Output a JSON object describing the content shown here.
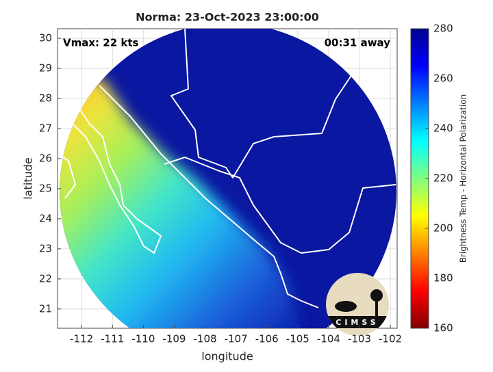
{
  "chart_data": {
    "type": "map",
    "title": "Norma: 23-Oct-2023 23:00:00",
    "xlabel": "longitude",
    "ylabel": "latitude",
    "annotations": [
      "Vmax: 22 kts",
      "00:31 away"
    ],
    "logo_text": "CIMSS",
    "xlim": [
      -112.78,
      -101.78
    ],
    "ylim": [
      20.36,
      30.32
    ],
    "xticks": [
      -112,
      -111,
      -110,
      -109,
      -108,
      -107,
      -106,
      -105,
      -104,
      -103,
      -102
    ],
    "yticks": [
      21,
      22,
      23,
      24,
      25,
      26,
      27,
      28,
      29,
      30
    ],
    "grid": true,
    "colorbar": {
      "label": "Brightness Temp - Horizontal Polarization",
      "lim": [
        160,
        280
      ],
      "ticks": [
        160,
        180,
        200,
        220,
        240,
        260,
        280
      ],
      "colormap": "jet"
    }
  }
}
